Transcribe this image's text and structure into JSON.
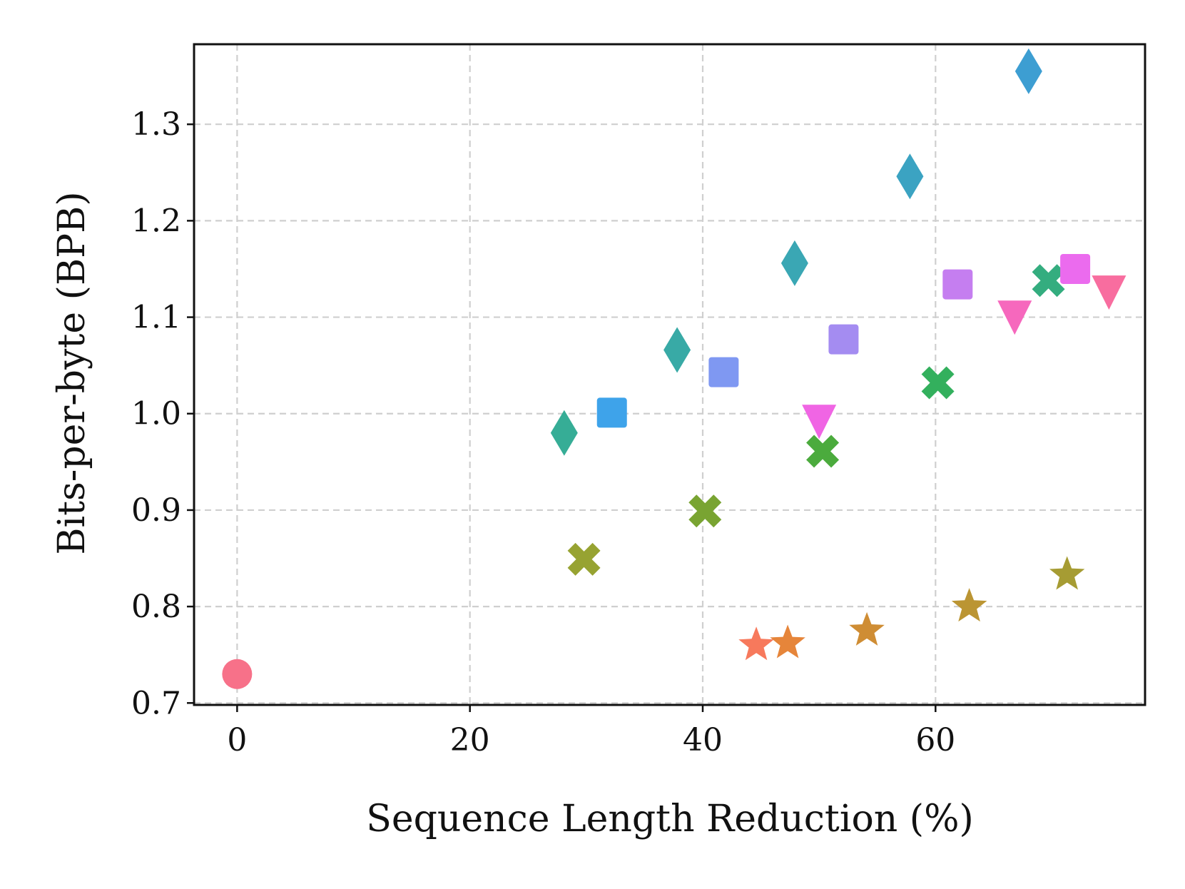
{
  "chart_data": {
    "type": "scatter",
    "title": "",
    "xlabel": "Sequence Length Reduction (%)",
    "ylabel": "Bits-per-byte (BPB)",
    "xlim": [
      -3.7,
      78
    ],
    "ylim": [
      0.698,
      1.383
    ],
    "xticks": [
      0,
      20,
      40,
      60
    ],
    "xtick_labels": [
      "0",
      "20",
      "40",
      "60"
    ],
    "yticks": [
      0.7,
      0.8,
      0.9,
      1.0,
      1.1,
      1.2,
      1.3
    ],
    "ytick_labels": [
      "0.7",
      "0.8",
      "0.9",
      "1.0",
      "1.1",
      "1.2",
      "1.3"
    ],
    "grid": true,
    "legend": "none",
    "points": [
      {
        "x": 0.0,
        "y": 0.73,
        "marker": "circle",
        "color": "#f77189"
      },
      {
        "x": 44.6,
        "y": 0.76,
        "marker": "star",
        "color": "#f7795c"
      },
      {
        "x": 47.3,
        "y": 0.762,
        "marker": "star",
        "color": "#e6853a"
      },
      {
        "x": 54.1,
        "y": 0.775,
        "marker": "star",
        "color": "#cf8d34"
      },
      {
        "x": 62.9,
        "y": 0.8,
        "marker": "star",
        "color": "#bb9533"
      },
      {
        "x": 71.3,
        "y": 0.833,
        "marker": "star",
        "color": "#a69c33"
      },
      {
        "x": 29.8,
        "y": 0.849,
        "marker": "x",
        "color": "#97a332"
      },
      {
        "x": 40.2,
        "y": 0.899,
        "marker": "x",
        "color": "#79a432"
      },
      {
        "x": 50.3,
        "y": 0.961,
        "marker": "x",
        "color": "#4bab3d"
      },
      {
        "x": 60.2,
        "y": 1.032,
        "marker": "x",
        "color": "#33b05d"
      },
      {
        "x": 69.7,
        "y": 1.138,
        "marker": "x",
        "color": "#34ad7f"
      },
      {
        "x": 28.1,
        "y": 0.98,
        "marker": "diamond",
        "color": "#36ad96"
      },
      {
        "x": 37.8,
        "y": 1.066,
        "marker": "diamond",
        "color": "#38aaa6"
      },
      {
        "x": 47.9,
        "y": 1.156,
        "marker": "diamond",
        "color": "#3aa7b4"
      },
      {
        "x": 57.8,
        "y": 1.246,
        "marker": "diamond",
        "color": "#3ba3c2"
      },
      {
        "x": 68.0,
        "y": 1.355,
        "marker": "diamond",
        "color": "#3d9ed2"
      },
      {
        "x": 32.2,
        "y": 1.001,
        "marker": "square",
        "color": "#3ea3ea"
      },
      {
        "x": 41.8,
        "y": 1.043,
        "marker": "square",
        "color": "#7f98f2"
      },
      {
        "x": 52.1,
        "y": 1.077,
        "marker": "square",
        "color": "#a48cf1"
      },
      {
        "x": 61.9,
        "y": 1.134,
        "marker": "square",
        "color": "#c57ef0"
      },
      {
        "x": 72.0,
        "y": 1.15,
        "marker": "square",
        "color": "#eb6bee"
      },
      {
        "x": 50.0,
        "y": 0.993,
        "marker": "triangle-down",
        "color": "#f065e4"
      },
      {
        "x": 66.8,
        "y": 1.101,
        "marker": "triangle-down",
        "color": "#f668bd"
      },
      {
        "x": 74.9,
        "y": 1.127,
        "marker": "triangle-down",
        "color": "#f86d9f"
      }
    ]
  }
}
